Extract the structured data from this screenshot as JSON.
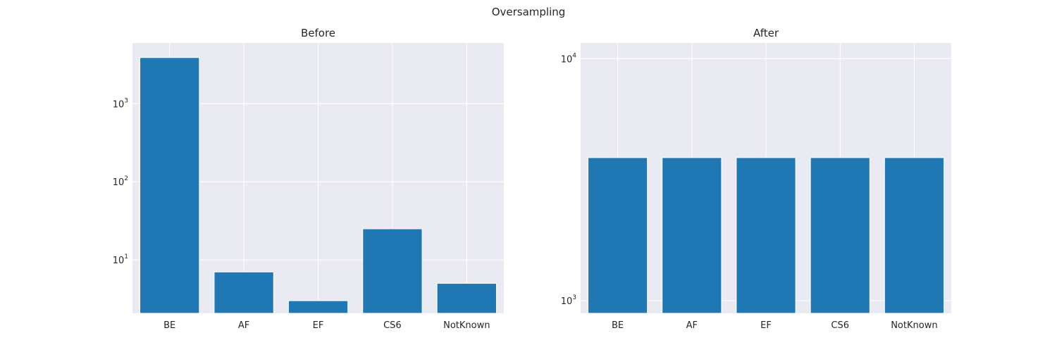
{
  "figure": {
    "suptitle": "Oversampling"
  },
  "chart_data": [
    {
      "type": "bar",
      "title": "Before",
      "xlabel": "",
      "ylabel": "",
      "yscale": "log",
      "grid": true,
      "categories": [
        "BE",
        "AF",
        "EF",
        "CS6",
        "NotKnown"
      ],
      "values": [
        3900,
        7,
        3,
        25,
        5
      ],
      "ylim": [
        2.07,
        6000
      ],
      "yticks": [
        {
          "value": 10,
          "base": "10",
          "exp": "1"
        },
        {
          "value": 100,
          "base": "10",
          "exp": "2"
        },
        {
          "value": 1000,
          "base": "10",
          "exp": "3"
        }
      ],
      "bar_color": "#1f77b4"
    },
    {
      "type": "bar",
      "title": "After",
      "xlabel": "",
      "ylabel": "",
      "yscale": "log",
      "grid": true,
      "categories": [
        "BE",
        "AF",
        "EF",
        "CS6",
        "NotKnown"
      ],
      "values": [
        3900,
        3900,
        3900,
        3900,
        3900
      ],
      "ylim": [
        887,
        11610
      ],
      "yticks": [
        {
          "value": 1000,
          "base": "10",
          "exp": "3"
        },
        {
          "value": 10000,
          "base": "10",
          "exp": "4"
        }
      ],
      "bar_color": "#1f77b4"
    }
  ]
}
